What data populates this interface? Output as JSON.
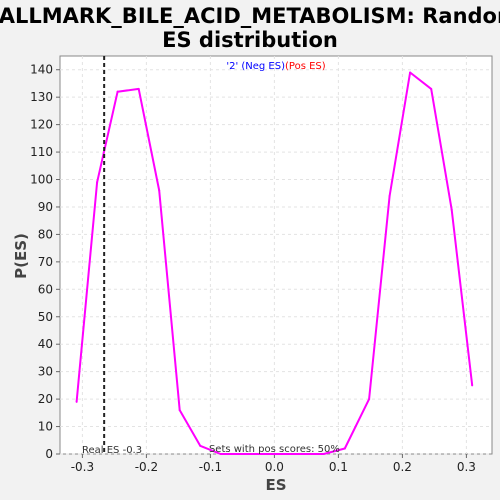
{
  "chart_data": {
    "type": "line",
    "title_line1": "HALLMARK_BILE_ACID_METABOLISM: Random",
    "title_line2": "ES distribution",
    "xlabel": "ES",
    "ylabel": "P(ES)",
    "xlim": [
      -0.335,
      0.34
    ],
    "ylim": [
      0,
      145
    ],
    "x_ticks": [
      -0.3,
      -0.2,
      -0.1,
      0.0,
      0.1,
      0.2,
      0.3
    ],
    "x_tick_labels": [
      "-0.3",
      "-0.2",
      "-0.1",
      "0.0",
      "0.1",
      "0.2",
      "0.3"
    ],
    "y_ticks": [
      0,
      10,
      20,
      30,
      40,
      50,
      60,
      70,
      80,
      90,
      100,
      110,
      120,
      130,
      140
    ],
    "grid": true,
    "legend": {
      "prefix": "'2' ",
      "neg_label": "(Neg ES)",
      "pos_label": "(Pos ES)",
      "neg_color": "#0000ff",
      "pos_color": "#ff0000",
      "placement": "top-center"
    },
    "series": [
      {
        "color": "#ff00ff",
        "points": [
          [
            -0.309,
            19
          ],
          [
            -0.277,
            99
          ],
          [
            -0.245,
            132
          ],
          [
            -0.212,
            133
          ],
          [
            -0.18,
            96
          ],
          [
            -0.148,
            16
          ],
          [
            -0.116,
            3
          ],
          [
            -0.084,
            0
          ],
          [
            -0.051,
            0
          ],
          [
            -0.019,
            0
          ],
          [
            0.013,
            0
          ],
          [
            0.045,
            0
          ],
          [
            0.077,
            0
          ],
          [
            0.11,
            2
          ],
          [
            0.148,
            20
          ],
          [
            0.18,
            94
          ],
          [
            0.212,
            139
          ],
          [
            0.245,
            133
          ],
          [
            0.277,
            89
          ],
          [
            0.309,
            25
          ]
        ]
      }
    ],
    "real_es": -0.266,
    "real_es_label": "Real ES -0.3",
    "pos_sets_label": "Sets with pos scores: 50%"
  }
}
